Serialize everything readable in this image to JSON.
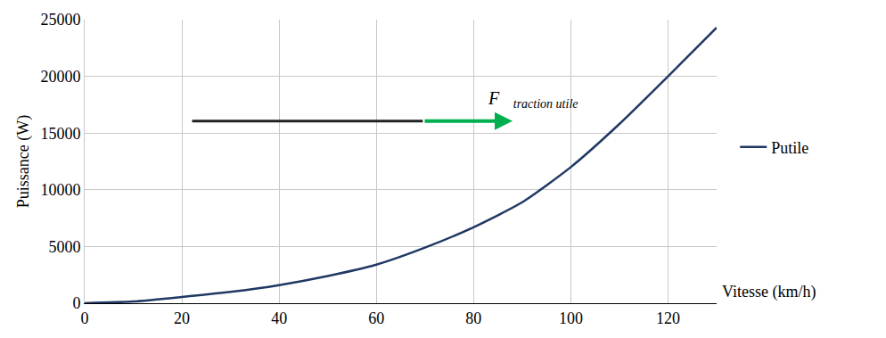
{
  "chart_data": {
    "type": "line",
    "x_label": "Vitesse (km/h)",
    "y_label": "Puissance (W)",
    "x": [
      0,
      10,
      20,
      30,
      40,
      50,
      60,
      70,
      80,
      90,
      100,
      110,
      120,
      130
    ],
    "series": [
      {
        "name": "Putile",
        "color": "#1f3864",
        "values": [
          0,
          150,
          550,
          1000,
          1600,
          2400,
          3400,
          4900,
          6700,
          8900,
          12000,
          15800,
          20000,
          24300
        ]
      }
    ],
    "xlim": [
      0,
      130
    ],
    "xticks": [
      0,
      20,
      40,
      60,
      80,
      100,
      120
    ],
    "ylim": [
      0,
      25000
    ],
    "yticks": [
      0,
      5000,
      10000,
      15000,
      20000,
      25000
    ],
    "grid": true,
    "legend": "right",
    "annotations": [
      {
        "text": "F⃗",
        "subscript": "traction utile",
        "color": "#00b050"
      }
    ]
  }
}
